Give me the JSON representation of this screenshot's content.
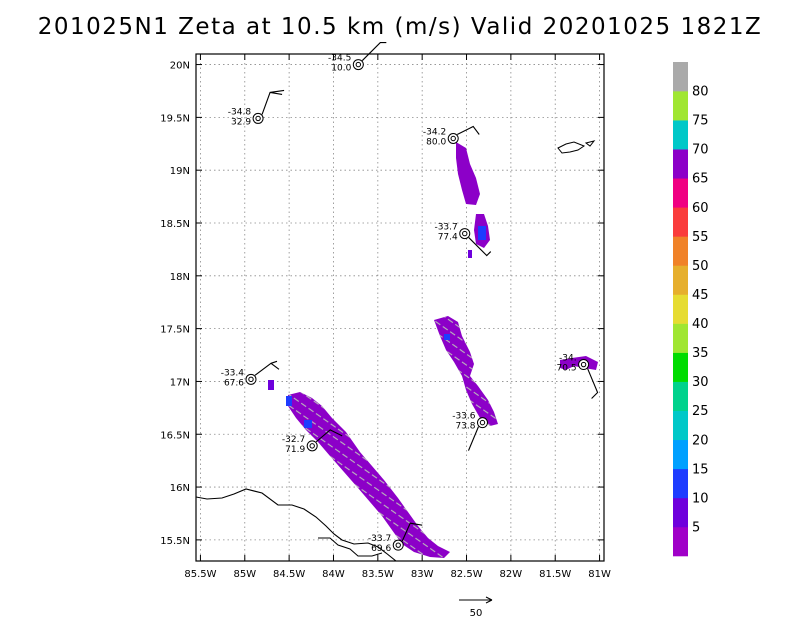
{
  "title": "201025N1 Zeta at 10.5 km (m/s) Valid 20201025 1821Z",
  "map": {
    "lon_range": [
      -85.55,
      -80.95
    ],
    "lat_range": [
      15.3,
      20.1
    ],
    "lon_ticks": [
      {
        "value": -85.5,
        "label": "85.5W"
      },
      {
        "value": -85,
        "label": "85W"
      },
      {
        "value": -84.5,
        "label": "84.5W"
      },
      {
        "value": -84,
        "label": "84W"
      },
      {
        "value": -83.5,
        "label": "83.5W"
      },
      {
        "value": -83,
        "label": "83W"
      },
      {
        "value": -82.5,
        "label": "82.5W"
      },
      {
        "value": -82,
        "label": "82W"
      },
      {
        "value": -81.5,
        "label": "81.5W"
      },
      {
        "value": -81,
        "label": "81W"
      }
    ],
    "lat_ticks": [
      {
        "value": 15.5,
        "label": "15.5N"
      },
      {
        "value": 16,
        "label": "16N"
      },
      {
        "value": 16.5,
        "label": "16.5N"
      },
      {
        "value": 17,
        "label": "17N"
      },
      {
        "value": 17.5,
        "label": "17.5N"
      },
      {
        "value": 18,
        "label": "18N"
      },
      {
        "value": 18.5,
        "label": "18.5N"
      },
      {
        "value": 19,
        "label": "19N"
      },
      {
        "value": 19.5,
        "label": "19.5N"
      },
      {
        "value": 20,
        "label": "20N"
      }
    ],
    "grid": true
  },
  "observations": [
    {
      "lon": -83.72,
      "lat": 20.0,
      "temp": "-34.5",
      "wind": "10.0"
    },
    {
      "lon": -84.85,
      "lat": 19.49,
      "temp": "-34.8",
      "wind": "32.9"
    },
    {
      "lon": -82.65,
      "lat": 19.3,
      "temp": "-34.2",
      "wind": "80.0"
    },
    {
      "lon": -82.52,
      "lat": 18.4,
      "temp": "-33.7",
      "wind": "77.4"
    },
    {
      "lon": -84.93,
      "lat": 17.02,
      "temp": "-33.4",
      "wind": "67.6"
    },
    {
      "lon": -81.18,
      "lat": 17.16,
      "temp": "-34.",
      "wind": "70.5"
    },
    {
      "lon": -82.32,
      "lat": 16.61,
      "temp": "-33.6",
      "wind": "73.8"
    },
    {
      "lon": -84.24,
      "lat": 16.39,
      "temp": "-32.7",
      "wind": "71.9"
    },
    {
      "lon": -83.27,
      "lat": 15.45,
      "temp": "-33.7",
      "wind": "69.6"
    }
  ],
  "colorbar": {
    "labels": [
      "5",
      "10",
      "15",
      "20",
      "25",
      "30",
      "35",
      "40",
      "45",
      "50",
      "55",
      "60",
      "65",
      "70",
      "75",
      "80"
    ],
    "colors": [
      "#a000c8",
      "#6e00dc",
      "#1e3cff",
      "#00a0ff",
      "#00c8c8",
      "#00d28c",
      "#00dc00",
      "#a0e632",
      "#e6dc32",
      "#e6af2d",
      "#f08228",
      "#fa3c3c",
      "#f00082",
      "#8c00c8",
      "#00c8c8",
      "#a0e632",
      "#aaaaaa"
    ]
  },
  "scale_vector": {
    "label": "50"
  }
}
